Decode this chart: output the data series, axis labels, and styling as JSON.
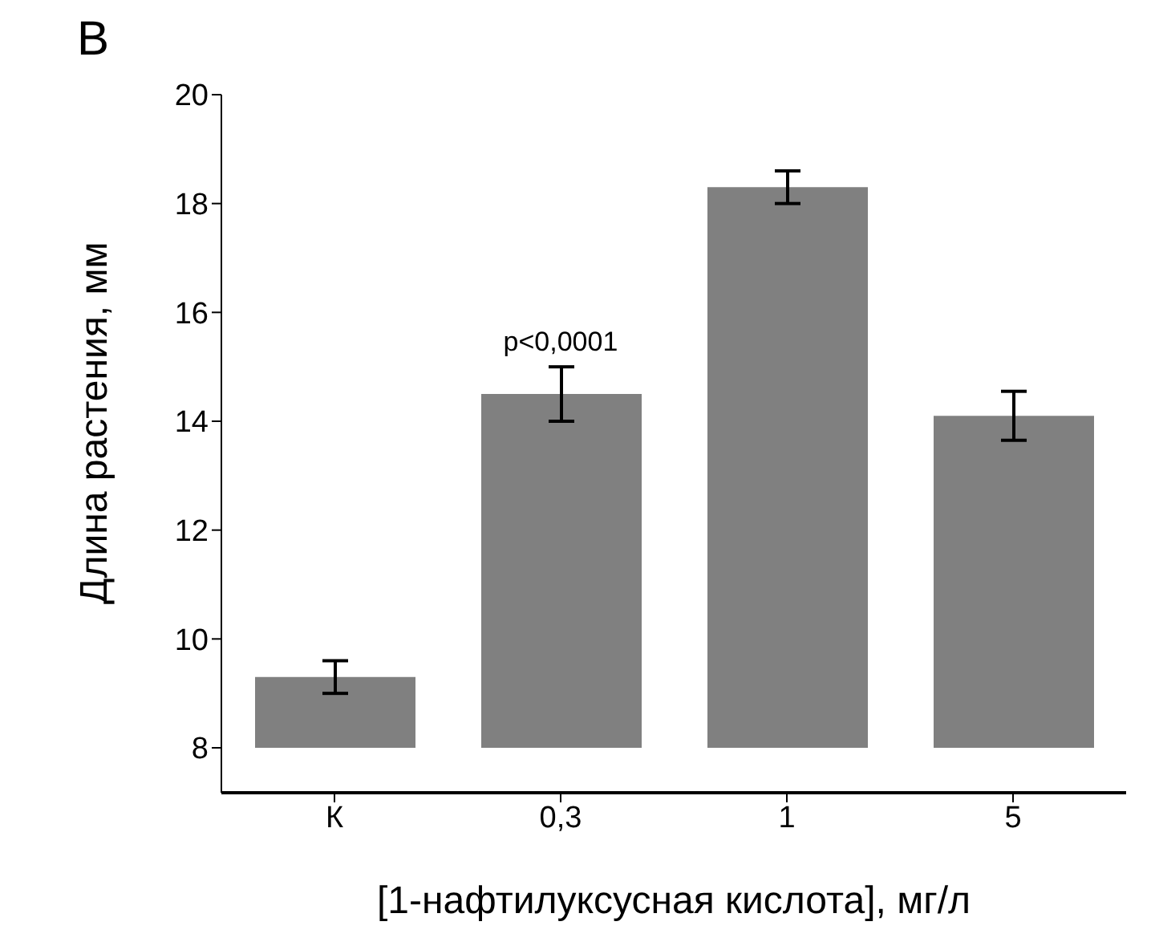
{
  "chart_data": {
    "type": "bar",
    "title": "B",
    "xlabel": "[1-нафтилуксусная кислота], мг/л",
    "ylabel": "Длина растения, мм",
    "categories": [
      "К",
      "0,3",
      "1",
      "5"
    ],
    "values": [
      9.3,
      14.5,
      18.3,
      14.1
    ],
    "errors": [
      0.3,
      0.5,
      0.3,
      0.45
    ],
    "color": "#808080",
    "ylim": [
      8,
      20
    ],
    "yticks": [
      8,
      10,
      12,
      14,
      16,
      18,
      20
    ],
    "annotations": [
      {
        "text": "p<0,0001",
        "x": "0,3",
        "y": 14.95
      }
    ]
  }
}
